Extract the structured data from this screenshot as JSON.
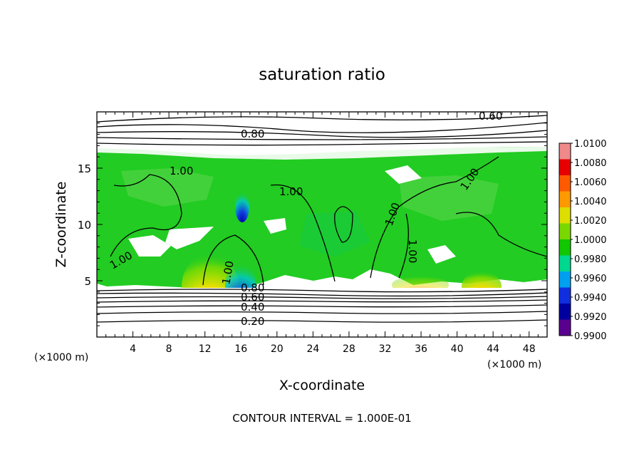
{
  "chart_data": {
    "type": "heatmap",
    "title": "saturation ratio",
    "xlabel": "X-coordinate",
    "ylabel": "Z-coordinate",
    "x_unit_label": "(×1000 m)",
    "x_unit_label_right": "(×1000 m)",
    "xlim": [
      0,
      50
    ],
    "ylim": [
      0,
      20
    ],
    "x_ticks": [
      "4",
      "8",
      "12",
      "16",
      "20",
      "24",
      "28",
      "32",
      "36",
      "40",
      "44",
      "48"
    ],
    "y_ticks": [
      "5",
      "10",
      "15"
    ],
    "footer": "CONTOUR INTERVAL = 1.000E-01",
    "contour_interval": 0.1,
    "contour_labels": [
      "0.60",
      "0.80",
      "1.00",
      "1.00",
      "1.00",
      "1.00",
      "1.00",
      "1.00",
      "1.00",
      "0.80",
      "0.60",
      "0.40",
      "0.20"
    ],
    "colorbar": {
      "labels": [
        "1.0100",
        "1.0080",
        "1.0060",
        "1.0040",
        "1.0020",
        "1.0000",
        "0.9980",
        "0.9960",
        "0.9940",
        "0.9920",
        "0.9900"
      ],
      "colors": [
        "#f08a8a",
        "#e60000",
        "#ff5a00",
        "#ff9900",
        "#dede00",
        "#7ad800",
        "#11c800",
        "#00d890",
        "#00a0f0",
        "#1030e0",
        "#0000a0",
        "#5a0090"
      ]
    },
    "field": {
      "background": "#22cc22",
      "cloud_base_z": 4.6,
      "cloud_top_z": 16.8,
      "hotspots_x": [
        12.5,
        42.5
      ],
      "cold_spot_x": 16
    }
  }
}
